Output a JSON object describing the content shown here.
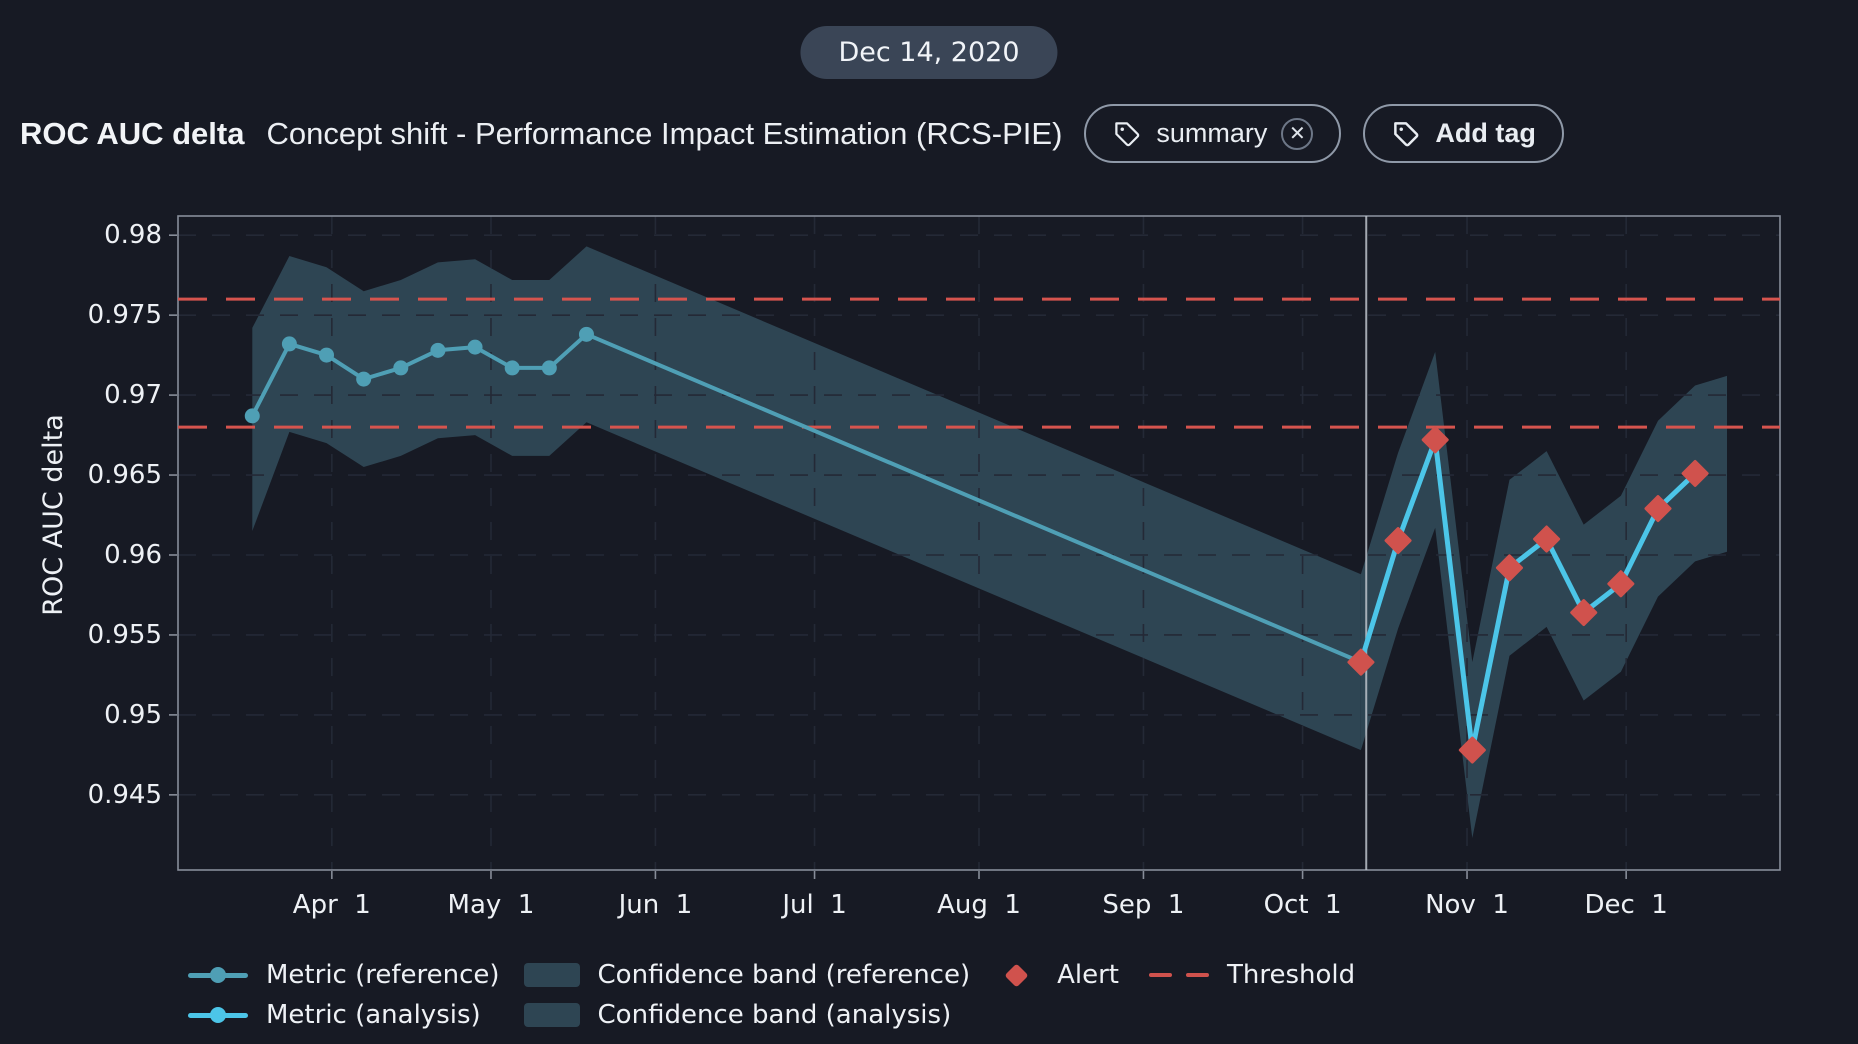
{
  "date_badge": {
    "label": "Dec 14, 2020"
  },
  "header": {
    "title": "ROC AUC delta",
    "subtitle": "Concept shift - Performance Impact Estimation (RCS-PIE)",
    "tags": [
      {
        "label": "summary"
      }
    ],
    "add_tag_label": "Add tag"
  },
  "chart_data": {
    "type": "line",
    "title": "",
    "xlabel": "",
    "ylabel": "ROC AUC delta",
    "ylim": [
      0.9403,
      0.9812
    ],
    "yticks": [
      0.945,
      0.95,
      0.955,
      0.96,
      0.965,
      0.97,
      0.975,
      0.98
    ],
    "ytick_labels": [
      "0.945",
      "0.95",
      "0.955",
      "0.96",
      "0.965",
      "0.97",
      "0.975",
      "0.98"
    ],
    "xdomain": [
      "2020-03-03",
      "2020-12-30"
    ],
    "xticks": [
      {
        "date": "2020-04-01",
        "label": "Apr  1"
      },
      {
        "date": "2020-05-01",
        "label": "May  1"
      },
      {
        "date": "2020-06-01",
        "label": "Jun  1"
      },
      {
        "date": "2020-07-01",
        "label": "Jul  1"
      },
      {
        "date": "2020-08-01",
        "label": "Aug  1"
      },
      {
        "date": "2020-09-01",
        "label": "Sep  1"
      },
      {
        "date": "2020-10-01",
        "label": "Oct  1"
      },
      {
        "date": "2020-11-01",
        "label": "Nov  1"
      },
      {
        "date": "2020-12-01",
        "label": "Dec  1"
      }
    ],
    "grid": true,
    "thresholds": {
      "values": [
        0.976,
        0.968
      ],
      "color": "#d6544e"
    },
    "separator_date": "2020-10-13",
    "series": [
      {
        "name": "Metric (reference)",
        "color": "#4f9fb5",
        "dates": [
          "2020-03-17",
          "2020-03-24",
          "2020-03-31",
          "2020-04-07",
          "2020-04-14",
          "2020-04-21",
          "2020-04-28",
          "2020-05-05",
          "2020-05-12",
          "2020-05-19",
          "2020-10-12"
        ],
        "values": [
          0.9687,
          0.9732,
          0.9725,
          0.971,
          0.9717,
          0.9728,
          0.973,
          0.9717,
          0.9717,
          0.9738,
          0.9533
        ],
        "band": {
          "name": "Confidence band (reference)",
          "color": "#2e4553",
          "dates": [
            "2020-03-17",
            "2020-03-24",
            "2020-03-31",
            "2020-04-07",
            "2020-04-14",
            "2020-04-21",
            "2020-04-28",
            "2020-05-05",
            "2020-05-12",
            "2020-05-19",
            "2020-10-12"
          ],
          "upper": [
            0.9742,
            0.9787,
            0.978,
            0.9765,
            0.9772,
            0.9783,
            0.9785,
            0.9772,
            0.9772,
            0.9793,
            0.9588
          ],
          "lower": [
            0.9615,
            0.9677,
            0.967,
            0.9655,
            0.9662,
            0.9673,
            0.9675,
            0.9662,
            0.9662,
            0.9683,
            0.9478
          ]
        }
      },
      {
        "name": "Metric (analysis)",
        "color": "#4cc5e8",
        "dates": [
          "2020-10-12",
          "2020-10-19",
          "2020-10-26",
          "2020-11-02",
          "2020-11-09",
          "2020-11-16",
          "2020-11-23",
          "2020-11-30",
          "2020-12-07",
          "2020-12-14"
        ],
        "values": [
          0.9533,
          0.9609,
          0.9672,
          0.9478,
          0.9592,
          0.961,
          0.9564,
          0.9582,
          0.9629,
          0.9651
        ],
        "alerts": [
          true,
          true,
          true,
          true,
          true,
          true,
          true,
          true,
          true,
          true
        ],
        "alert_color": "#d0524d",
        "band": {
          "name": "Confidence band (analysis)",
          "color": "#2e4553",
          "dates": [
            "2020-10-12",
            "2020-10-19",
            "2020-10-26",
            "2020-11-02",
            "2020-11-09",
            "2020-11-16",
            "2020-11-23",
            "2020-11-30",
            "2020-12-07",
            "2020-12-14",
            "2020-12-20"
          ],
          "upper": [
            0.9588,
            0.9664,
            0.9727,
            0.9533,
            0.9647,
            0.9665,
            0.9619,
            0.9637,
            0.9684,
            0.9706,
            0.9712
          ],
          "lower": [
            0.9478,
            0.9554,
            0.9617,
            0.9423,
            0.9537,
            0.9555,
            0.9509,
            0.9527,
            0.9574,
            0.9596,
            0.9602
          ]
        }
      }
    ],
    "legend": [
      {
        "kind": "line-reference",
        "label": "Metric (reference)"
      },
      {
        "kind": "band-reference",
        "label": "Confidence band (reference)"
      },
      {
        "kind": "alert",
        "label": "Alert"
      },
      {
        "kind": "threshold",
        "label": "Threshold"
      },
      {
        "kind": "line-analysis",
        "label": "Metric (analysis)"
      },
      {
        "kind": "band-analysis",
        "label": "Confidence band (analysis)"
      }
    ],
    "colors": {
      "background": "#171a24",
      "plot_border": "#878d99",
      "grid": "#242936",
      "axis_text": "#eef1f5",
      "separator": "#bcc2ca",
      "threshold": "#d6544e",
      "alert": "#d0524d",
      "reference_line": "#4f9fb5",
      "analysis_line": "#4cc5e8",
      "band_fill": "#2e4553"
    }
  }
}
